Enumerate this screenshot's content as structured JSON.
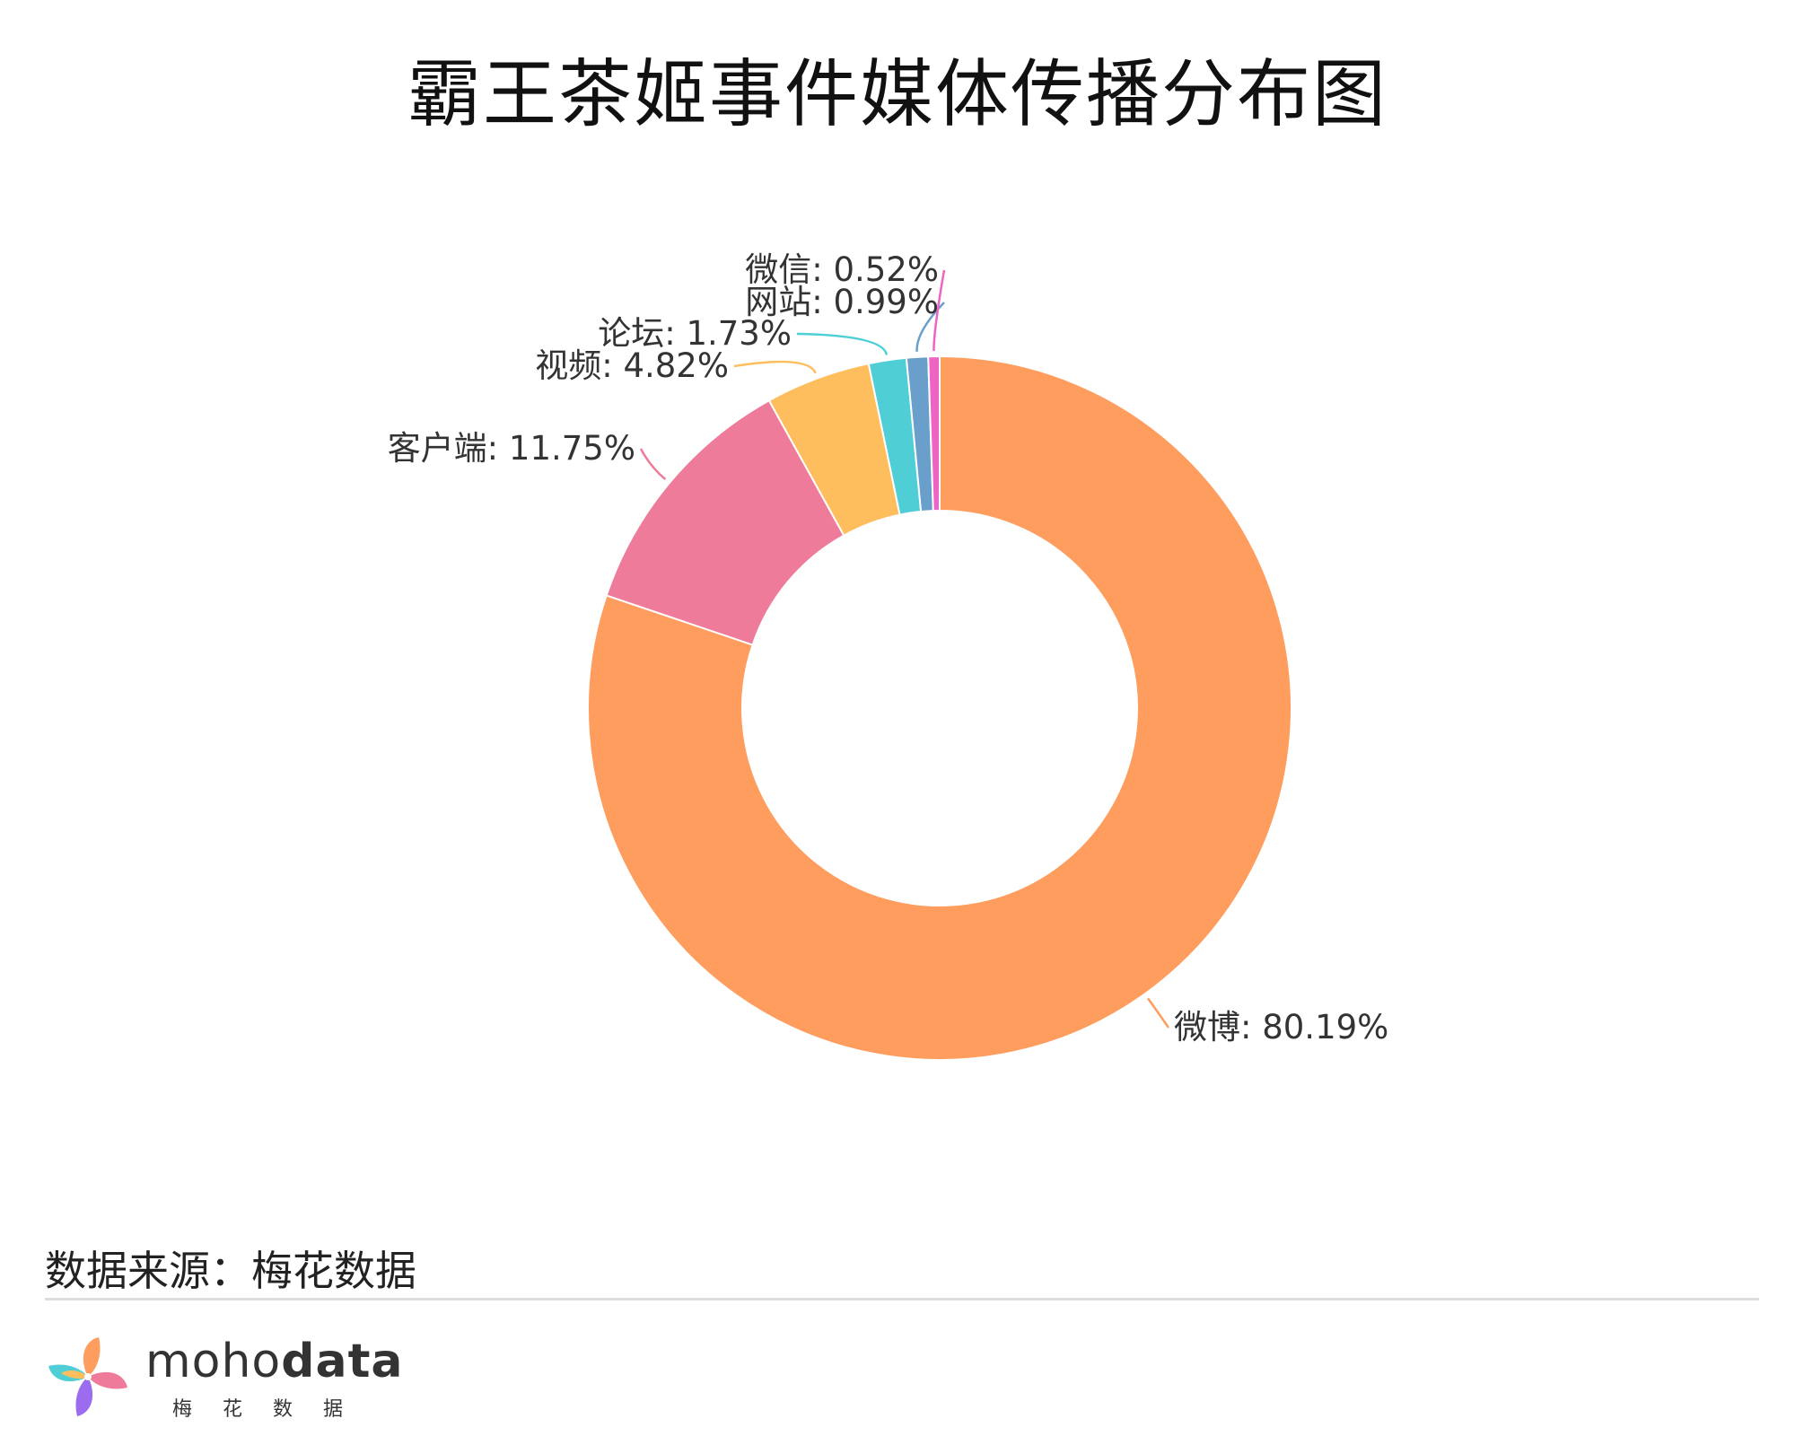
{
  "title": "霸王茶姬事件媒体传播分布图",
  "chart_data": {
    "type": "pie",
    "donut": true,
    "slices": [
      {
        "name": "微博",
        "value": 80.19,
        "label": "微博: 80.19%",
        "color": "#FE9D5D"
      },
      {
        "name": "客户端",
        "value": 11.75,
        "label": "客户端: 11.75%",
        "color": "#ED7B99"
      },
      {
        "name": "视频",
        "value": 4.82,
        "label": "视频: 4.82%",
        "color": "#FEBE5D"
      },
      {
        "name": "论坛",
        "value": 1.73,
        "label": "论坛: 1.73%",
        "color": "#4FCFD5"
      },
      {
        "name": "网站",
        "value": 0.99,
        "label": "网站: 0.99%",
        "color": "#6A9FCC"
      },
      {
        "name": "微信",
        "value": 0.52,
        "label": "微信: 0.52%",
        "color": "#EF63C5"
      }
    ]
  },
  "footer": {
    "source": "数据来源：梅花数据",
    "brand_light": "moho",
    "brand_bold": "data",
    "brand_sub": "梅花数据"
  }
}
